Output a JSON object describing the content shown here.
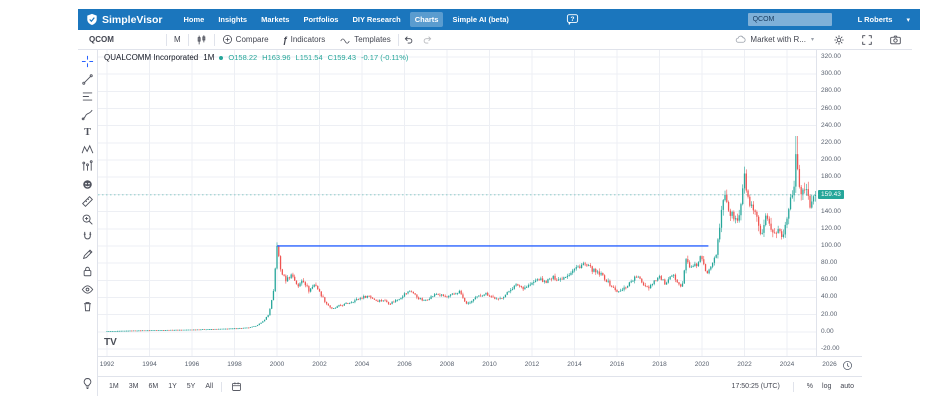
{
  "nav": {
    "brand": "SimpleVisor",
    "items": [
      {
        "label": "Home",
        "active": false
      },
      {
        "label": "Insights",
        "active": false
      },
      {
        "label": "Markets",
        "active": false
      },
      {
        "label": "Portfolios",
        "active": false
      },
      {
        "label": "DIY Research",
        "active": false
      },
      {
        "label": "Charts",
        "active": true
      },
      {
        "label": "Simple AI (beta)",
        "active": false
      }
    ],
    "search_value": "QCOM",
    "user": "L Roberts"
  },
  "toolbar": {
    "symbol": "QCOM",
    "interval": "M",
    "compare": "Compare",
    "indicators_glyph": "ƒ",
    "indicators": "Indicators",
    "templates": "Templates",
    "layout": "Market with R..."
  },
  "legend": {
    "name": "QUALCOMM Incorporated",
    "interval": "1M",
    "dot_color": "#26a69a",
    "value_color": "#26a69a",
    "values": [
      "O158.22",
      "H163.96",
      "L151.54",
      "C159.43",
      "-0.17 (-0.11%)"
    ]
  },
  "tools": {
    "items": [
      "crosshair",
      "trend-line",
      "fib-retracement",
      "brush",
      "text",
      "xabcd-pattern",
      "bars-pattern",
      "emoji",
      "measure",
      "zoom-in",
      "magnet",
      "pencil",
      "lock",
      "eye",
      "trash"
    ],
    "bottom": "lightbulb"
  },
  "watermark": "TV",
  "bottom": {
    "ranges": [
      "1M",
      "3M",
      "6M",
      "1Y",
      "5Y",
      "All"
    ],
    "clock": "17:50:25 (UTC)",
    "modes": [
      "%",
      "log",
      "auto"
    ]
  },
  "chart_data": {
    "type": "candlestick",
    "symbol": "QCOM",
    "title": "QUALCOMM Incorporated, 1M",
    "x_axis": {
      "start": 1992,
      "end": 2026,
      "tick_step": 2,
      "unit": "year"
    },
    "y_axis": {
      "min": -20,
      "max": 320,
      "tick_step": 20
    },
    "grid": true,
    "legend_position": "top-left",
    "colors": {
      "up": "#26a69a",
      "down": "#ef5350",
      "trendline": "#2962ff"
    },
    "last_candle": {
      "open": 158.22,
      "high": 163.96,
      "low": 151.54,
      "close": 159.43,
      "change": "-0.17 (-0.11%)"
    },
    "current_price": 159.43,
    "trendline": {
      "price": 100,
      "from": 2000.0,
      "to": 2020.3
    },
    "monthly_close_anchors": [
      [
        1992,
        0.7
      ],
      [
        1993,
        1.4
      ],
      [
        1994,
        1.8
      ],
      [
        1995,
        2.2
      ],
      [
        1996,
        2.6
      ],
      [
        1997,
        3.2
      ],
      [
        1998,
        4
      ],
      [
        1998.7,
        5
      ],
      [
        1999,
        7
      ],
      [
        1999.3,
        11
      ],
      [
        1999.6,
        20
      ],
      [
        1999.83,
        45
      ],
      [
        2000,
        100
      ],
      [
        2000.17,
        72
      ],
      [
        2000.4,
        60
      ],
      [
        2000.7,
        67
      ],
      [
        2001,
        52
      ],
      [
        2001.2,
        62
      ],
      [
        2001.5,
        48
      ],
      [
        2001.8,
        56
      ],
      [
        2002,
        46
      ],
      [
        2002.3,
        34
      ],
      [
        2002.6,
        26
      ],
      [
        2002.9,
        30
      ],
      [
        2003.2,
        32
      ],
      [
        2003.6,
        36
      ],
      [
        2004,
        40
      ],
      [
        2004.3,
        42
      ],
      [
        2004.7,
        36
      ],
      [
        2005,
        37
      ],
      [
        2005.3,
        33
      ],
      [
        2005.7,
        38
      ],
      [
        2006,
        44
      ],
      [
        2006.3,
        48
      ],
      [
        2006.6,
        40
      ],
      [
        2006.9,
        36
      ],
      [
        2007.2,
        40
      ],
      [
        2007.5,
        44
      ],
      [
        2007.8,
        42
      ],
      [
        2008,
        40
      ],
      [
        2008.3,
        44
      ],
      [
        2008.6,
        47
      ],
      [
        2008.85,
        34
      ],
      [
        2009,
        33
      ],
      [
        2009.4,
        40
      ],
      [
        2009.8,
        45
      ],
      [
        2010.1,
        41
      ],
      [
        2010.4,
        37
      ],
      [
        2010.8,
        44
      ],
      [
        2011,
        50
      ],
      [
        2011.3,
        55
      ],
      [
        2011.6,
        51
      ],
      [
        2012,
        56
      ],
      [
        2012.3,
        62
      ],
      [
        2012.6,
        58
      ],
      [
        2013,
        63
      ],
      [
        2013.3,
        61
      ],
      [
        2013.7,
        67
      ],
      [
        2014,
        73
      ],
      [
        2014.4,
        79
      ],
      [
        2014.7,
        75
      ],
      [
        2015,
        69
      ],
      [
        2015.3,
        66
      ],
      [
        2015.6,
        57
      ],
      [
        2015.9,
        49
      ],
      [
        2016.1,
        46
      ],
      [
        2016.4,
        52
      ],
      [
        2016.7,
        60
      ],
      [
        2016.95,
        65
      ],
      [
        2017.2,
        56
      ],
      [
        2017.5,
        52
      ],
      [
        2017.8,
        61
      ],
      [
        2018,
        64
      ],
      [
        2018.3,
        55
      ],
      [
        2018.6,
        66
      ],
      [
        2018.9,
        58
      ],
      [
        2019.05,
        51
      ],
      [
        2019.25,
        84
      ],
      [
        2019.5,
        74
      ],
      [
        2019.75,
        78
      ],
      [
        2019.95,
        88
      ],
      [
        2020.2,
        67
      ],
      [
        2020.45,
        80
      ],
      [
        2020.7,
        94
      ],
      [
        2020.85,
        125
      ],
      [
        2021,
        155
      ],
      [
        2021.1,
        162
      ],
      [
        2021.3,
        137
      ],
      [
        2021.5,
        134
      ],
      [
        2021.7,
        127
      ],
      [
        2021.9,
        160
      ],
      [
        2022,
        180
      ],
      [
        2022.2,
        150
      ],
      [
        2022.4,
        140
      ],
      [
        2022.6,
        130
      ],
      [
        2022.8,
        108
      ],
      [
        2023,
        131
      ],
      [
        2023.2,
        124
      ],
      [
        2023.4,
        114
      ],
      [
        2023.6,
        119
      ],
      [
        2023.8,
        109
      ],
      [
        2023.95,
        128
      ],
      [
        2024.1,
        150
      ],
      [
        2024.3,
        165
      ],
      [
        2024.45,
        210
      ],
      [
        2024.55,
        175
      ],
      [
        2024.7,
        162
      ],
      [
        2024.85,
        170
      ],
      [
        2025,
        153
      ],
      [
        2025.15,
        147
      ],
      [
        2025.25,
        155
      ],
      [
        2025.33,
        159.43
      ]
    ]
  }
}
